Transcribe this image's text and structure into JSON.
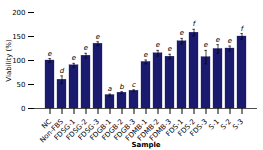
{
  "chart_data": {
    "type": "bar",
    "categories": [
      "NC",
      "Non-FBS",
      "FDSG-1",
      "FDSG-2",
      "FDSG-3",
      "FDGB-1",
      "FDGB-2",
      "FDGB-3",
      "FDMB-1",
      "FDMB-2",
      "FDMB-3",
      "FDS-1",
      "FDS-2",
      "FDS-3",
      "S-1",
      "S-2",
      "S-3"
    ],
    "values": [
      100,
      60,
      90,
      110,
      135,
      28,
      33,
      37,
      97,
      115,
      108,
      140,
      158,
      107,
      124,
      125,
      150
    ],
    "errors": [
      4,
      8,
      4,
      5,
      4,
      2,
      2,
      2,
      4,
      6,
      5,
      6,
      7,
      14,
      9,
      5,
      6
    ],
    "letters": [
      "e",
      "d",
      "e",
      "e",
      "e",
      "a",
      "b",
      "c",
      "e",
      "e",
      "e",
      "e",
      "f",
      "e",
      "e",
      "e",
      "f"
    ],
    "color": "#1a1a6e",
    "xlabel": "Sample",
    "ylabel": "Viability (%)",
    "ylim": [
      0,
      200
    ],
    "yticks": [
      0,
      50,
      100,
      150,
      200
    ]
  }
}
